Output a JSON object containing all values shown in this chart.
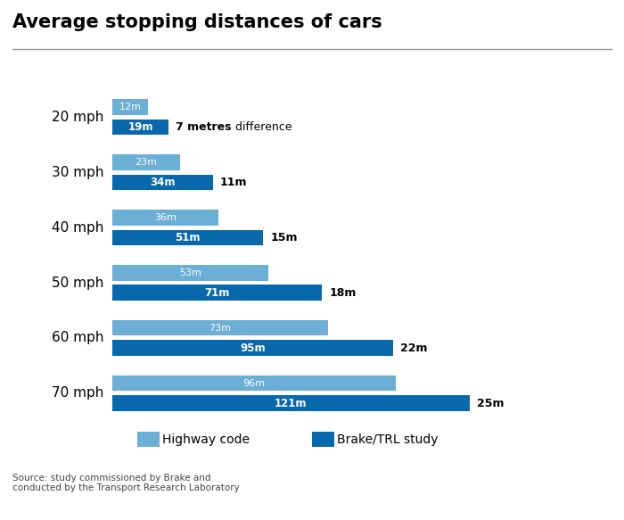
{
  "title": "Average stopping distances of cars",
  "speeds": [
    "20 mph",
    "30 mph",
    "40 mph",
    "50 mph",
    "60 mph",
    "70 mph"
  ],
  "highway_code": [
    12,
    23,
    36,
    53,
    73,
    96
  ],
  "brake_trl": [
    19,
    34,
    51,
    71,
    95,
    121
  ],
  "diff_bold_part": [
    "7 metres",
    "11m",
    "15m",
    "18m",
    "22m",
    "25m"
  ],
  "diff_regular_part": [
    " difference",
    "",
    "",
    "",
    "",
    ""
  ],
  "color_highway": "#6BAED6",
  "color_brake": "#0868AC",
  "color_background": "#FFFFFF",
  "source_text": "Source: study commissioned by Brake and\nconducted by the Transport Research Laboratory",
  "legend_highway": "Highway code",
  "legend_brake": "Brake/TRL study",
  "figsize": [
    7.0,
    5.83
  ],
  "dpi": 100
}
